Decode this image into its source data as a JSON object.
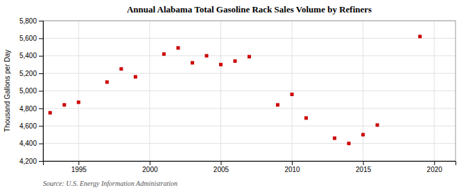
{
  "chart_data": {
    "type": "scatter",
    "title": "Annual Alabama Total Gasoline Rack Sales Volume by Refiners",
    "ylabel": "Thousand Gallons per Day",
    "annotations": [
      "Source: U.S. Energy Information Administration"
    ],
    "x": [
      1993,
      1994,
      1995,
      1997,
      1998,
      1999,
      2001,
      2002,
      2003,
      2004,
      2005,
      2006,
      2007,
      2009,
      2010,
      2011,
      2013,
      2014,
      2015,
      2016,
      2019
    ],
    "values": [
      4750,
      4840,
      4870,
      5100,
      5250,
      5160,
      5420,
      5490,
      5320,
      5400,
      5300,
      5340,
      5390,
      4840,
      4960,
      4690,
      4460,
      4400,
      4500,
      4610,
      5620
    ],
    "color": "#cc0000",
    "marker": "square",
    "xlim": [
      1992.5,
      2021.5
    ],
    "ylim": [
      4200,
      5800
    ],
    "xticks": [
      1995,
      2000,
      2005,
      2010,
      2015,
      2020
    ],
    "yticks": [
      {
        "value": 4200,
        "label": "4,200"
      },
      {
        "value": 4400,
        "label": "4,400"
      },
      {
        "value": 4600,
        "label": "4,600"
      },
      {
        "value": 4800,
        "label": "4,800"
      },
      {
        "value": 5000,
        "label": "5,000"
      },
      {
        "value": 5200,
        "label": "5,200"
      },
      {
        "value": 5400,
        "label": "5,400"
      },
      {
        "value": 5600,
        "label": "5,600"
      },
      {
        "value": 5800,
        "label": "5,800"
      }
    ],
    "grid": true
  }
}
